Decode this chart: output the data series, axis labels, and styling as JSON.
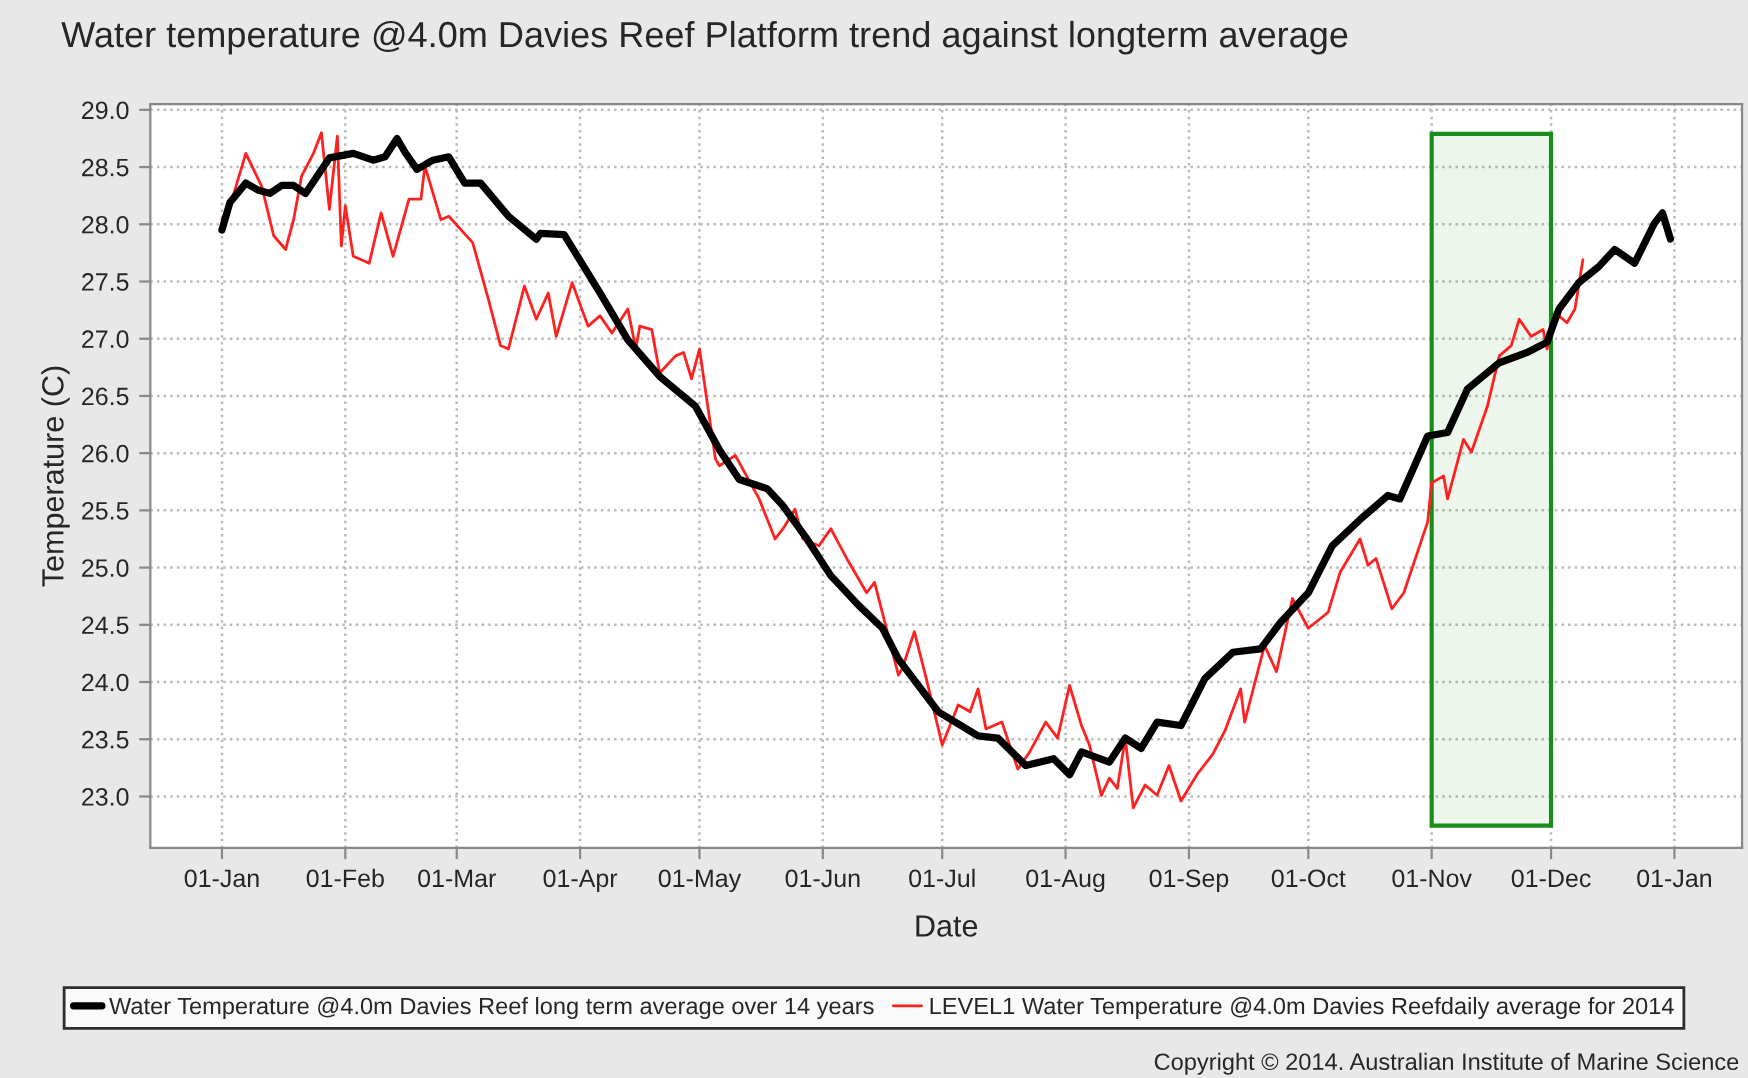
{
  "chart_data": {
    "type": "line",
    "title": "Water temperature @4.0m Davies Reef Platform trend against longterm average",
    "xlabel": "Date",
    "ylabel": "Temperature (C)",
    "annotations": [
      "Copyright © 2014. Australian Institute of Marine Science"
    ],
    "xlim": [
      "2013-12-14",
      "2015-01-18"
    ],
    "xticks": [
      {
        "value": "2014-01-01",
        "label": "01-Jan"
      },
      {
        "value": "2014-02-01",
        "label": "01-Feb"
      },
      {
        "value": "2014-03-01",
        "label": "01-Mar"
      },
      {
        "value": "2014-04-01",
        "label": "01-Apr"
      },
      {
        "value": "2014-05-01",
        "label": "01-May"
      },
      {
        "value": "2014-06-01",
        "label": "01-Jun"
      },
      {
        "value": "2014-07-01",
        "label": "01-Jul"
      },
      {
        "value": "2014-08-01",
        "label": "01-Aug"
      },
      {
        "value": "2014-09-01",
        "label": "01-Sep"
      },
      {
        "value": "2014-10-01",
        "label": "01-Oct"
      },
      {
        "value": "2014-11-01",
        "label": "01-Nov"
      },
      {
        "value": "2014-12-01",
        "label": "01-Dec"
      },
      {
        "value": "2015-01-01",
        "label": "01-Jan"
      }
    ],
    "ylim": [
      22.55,
      29.05
    ],
    "yticks": [
      {
        "value": 23.0,
        "label": "23.0"
      },
      {
        "value": 23.5,
        "label": "23.5"
      },
      {
        "value": 24.0,
        "label": "24.0"
      },
      {
        "value": 24.5,
        "label": "24.5"
      },
      {
        "value": 25.0,
        "label": "25.0"
      },
      {
        "value": 25.5,
        "label": "25.5"
      },
      {
        "value": 26.0,
        "label": "26.0"
      },
      {
        "value": 26.5,
        "label": "26.5"
      },
      {
        "value": 27.0,
        "label": "27.0"
      },
      {
        "value": 27.5,
        "label": "27.5"
      },
      {
        "value": 28.0,
        "label": "28.0"
      },
      {
        "value": 28.5,
        "label": "28.5"
      },
      {
        "value": 29.0,
        "label": "29.0"
      }
    ],
    "grid": true,
    "legend": "bottom",
    "marker": "none",
    "line_style": "solid",
    "bands": [
      {
        "axis": "x",
        "from": "2014-11-01",
        "to": "2014-12-01",
        "color": "#1a8c1a"
      }
    ],
    "series": [
      {
        "name": "Water Temperature @4.0m Davies Reef long term average over 14 years",
        "color": "#000000",
        "x": [
          "2014-01-01",
          "2014-01-03",
          "2014-01-07",
          "2014-01-10",
          "2014-01-13",
          "2014-01-16",
          "2014-01-19",
          "2014-01-22",
          "2014-01-28",
          "2014-02-03",
          "2014-02-08",
          "2014-02-11",
          "2014-02-14",
          "2014-02-16",
          "2014-02-19",
          "2014-02-23",
          "2014-02-27",
          "2014-03-03",
          "2014-03-07",
          "2014-03-14",
          "2014-03-21",
          "2014-03-22",
          "2014-03-28",
          "2014-04-06",
          "2014-04-13",
          "2014-04-21",
          "2014-04-30",
          "2014-05-06",
          "2014-05-11",
          "2014-05-18",
          "2014-05-22",
          "2014-05-28",
          "2014-06-03",
          "2014-06-10",
          "2014-06-16",
          "2014-06-20",
          "2014-06-30",
          "2014-07-10",
          "2014-07-15",
          "2014-07-22",
          "2014-07-29",
          "2014-08-02",
          "2014-08-05",
          "2014-08-12",
          "2014-08-16",
          "2014-08-20",
          "2014-08-24",
          "2014-08-30",
          "2014-09-05",
          "2014-09-12",
          "2014-09-19",
          "2014-09-24",
          "2014-10-01",
          "2014-10-07",
          "2014-10-14",
          "2014-10-21",
          "2014-10-24",
          "2014-10-31",
          "2014-11-05",
          "2014-11-10",
          "2014-11-18",
          "2014-11-25",
          "2014-11-30",
          "2014-12-03",
          "2014-12-08",
          "2014-12-13",
          "2014-12-17",
          "2014-12-22",
          "2014-12-27",
          "2014-12-29",
          "2014-12-31"
        ],
        "values": [
          27.95,
          28.19,
          28.36,
          28.3,
          28.27,
          28.34,
          28.34,
          28.27,
          28.58,
          28.62,
          28.56,
          28.59,
          28.75,
          28.63,
          28.48,
          28.56,
          28.59,
          28.36,
          28.36,
          28.07,
          27.87,
          27.92,
          27.91,
          27.4,
          26.99,
          26.67,
          26.41,
          26.03,
          25.77,
          25.69,
          25.54,
          25.25,
          24.93,
          24.67,
          24.47,
          24.2,
          23.74,
          23.53,
          23.51,
          23.27,
          23.33,
          23.19,
          23.39,
          23.3,
          23.51,
          23.42,
          23.65,
          23.62,
          24.03,
          24.26,
          24.29,
          24.52,
          24.78,
          25.19,
          25.42,
          25.63,
          25.6,
          26.15,
          26.18,
          26.56,
          26.79,
          26.88,
          26.97,
          27.26,
          27.49,
          27.63,
          27.78,
          27.66,
          28.01,
          28.1,
          27.87
        ]
      },
      {
        "name": "LEVEL1 Water Temperature @4.0m Davies Reefdaily average for 2014",
        "color": "#ff2020",
        "x": [
          "2014-01-01",
          "2014-01-04",
          "2014-01-07",
          "2014-01-11",
          "2014-01-14",
          "2014-01-17",
          "2014-01-19",
          "2014-01-21",
          "2014-01-24",
          "2014-01-26",
          "2014-01-28",
          "2014-01-30",
          "2014-01-31",
          "2014-02-01",
          "2014-02-03",
          "2014-02-07",
          "2014-02-10",
          "2014-02-13",
          "2014-02-17",
          "2014-02-20",
          "2014-02-21",
          "2014-02-25",
          "2014-02-27",
          "2014-03-05",
          "2014-03-09",
          "2014-03-12",
          "2014-03-14",
          "2014-03-18",
          "2014-03-21",
          "2014-03-24",
          "2014-03-26",
          "2014-03-30",
          "2014-04-03",
          "2014-04-06",
          "2014-04-09",
          "2014-04-13",
          "2014-04-15",
          "2014-04-16",
          "2014-04-19",
          "2014-04-21",
          "2014-04-25",
          "2014-04-27",
          "2014-04-29",
          "2014-05-01",
          "2014-05-05",
          "2014-05-06",
          "2014-05-10",
          "2014-05-16",
          "2014-05-20",
          "2014-05-22",
          "2014-05-25",
          "2014-05-27",
          "2014-05-31",
          "2014-06-03",
          "2014-06-07",
          "2014-06-10",
          "2014-06-12",
          "2014-06-14",
          "2014-06-20",
          "2014-06-21",
          "2014-06-24",
          "2014-06-27",
          "2014-07-01",
          "2014-07-05",
          "2014-07-08",
          "2014-07-10",
          "2014-07-12",
          "2014-07-16",
          "2014-07-20",
          "2014-07-23",
          "2014-07-27",
          "2014-07-30",
          "2014-08-02",
          "2014-08-05",
          "2014-08-07",
          "2014-08-10",
          "2014-08-12",
          "2014-08-14",
          "2014-08-16",
          "2014-08-18",
          "2014-08-21",
          "2014-08-24",
          "2014-08-27",
          "2014-08-30",
          "2014-09-03",
          "2014-09-07",
          "2014-09-10",
          "2014-09-14",
          "2014-09-15",
          "2014-09-20",
          "2014-09-23",
          "2014-09-27",
          "2014-10-01",
          "2014-10-06",
          "2014-10-09",
          "2014-10-14",
          "2014-10-16",
          "2014-10-18",
          "2014-10-22",
          "2014-10-25",
          "2014-10-31",
          "2014-11-01",
          "2014-11-04",
          "2014-11-05",
          "2014-11-09",
          "2014-11-11",
          "2014-11-15",
          "2014-11-18",
          "2014-11-21",
          "2014-11-23",
          "2014-11-26",
          "2014-11-29",
          "2014-11-30",
          "2014-12-02",
          "2014-12-05",
          "2014-12-07",
          "2014-12-09"
        ],
        "values": [
          28.04,
          28.27,
          28.62,
          28.33,
          27.9,
          27.78,
          28.04,
          28.42,
          28.62,
          28.8,
          28.13,
          28.77,
          27.81,
          28.16,
          27.72,
          27.66,
          28.1,
          27.72,
          28.22,
          28.22,
          28.51,
          28.04,
          28.07,
          27.84,
          27.34,
          26.94,
          26.91,
          27.46,
          27.17,
          27.4,
          27.02,
          27.49,
          27.11,
          27.2,
          27.05,
          27.26,
          26.91,
          27.11,
          27.08,
          26.7,
          26.85,
          26.88,
          26.65,
          26.91,
          25.95,
          25.89,
          25.98,
          25.6,
          25.25,
          25.34,
          25.51,
          25.25,
          25.19,
          25.34,
          25.08,
          24.9,
          24.78,
          24.87,
          24.06,
          24.12,
          24.44,
          24.03,
          23.45,
          23.8,
          23.74,
          23.94,
          23.59,
          23.65,
          23.24,
          23.39,
          23.65,
          23.51,
          23.97,
          23.62,
          23.45,
          23.01,
          23.16,
          23.07,
          23.51,
          22.9,
          23.1,
          23.01,
          23.27,
          22.96,
          23.19,
          23.37,
          23.57,
          23.94,
          23.65,
          24.32,
          24.09,
          24.73,
          24.47,
          24.61,
          24.96,
          25.25,
          25.02,
          25.08,
          24.64,
          24.78,
          25.4,
          25.74,
          25.8,
          25.6,
          26.12,
          26.01,
          26.41,
          26.85,
          26.94,
          27.17,
          27.02,
          27.08,
          26.91,
          27.23,
          27.14,
          27.26,
          27.69
        ]
      }
    ]
  }
}
